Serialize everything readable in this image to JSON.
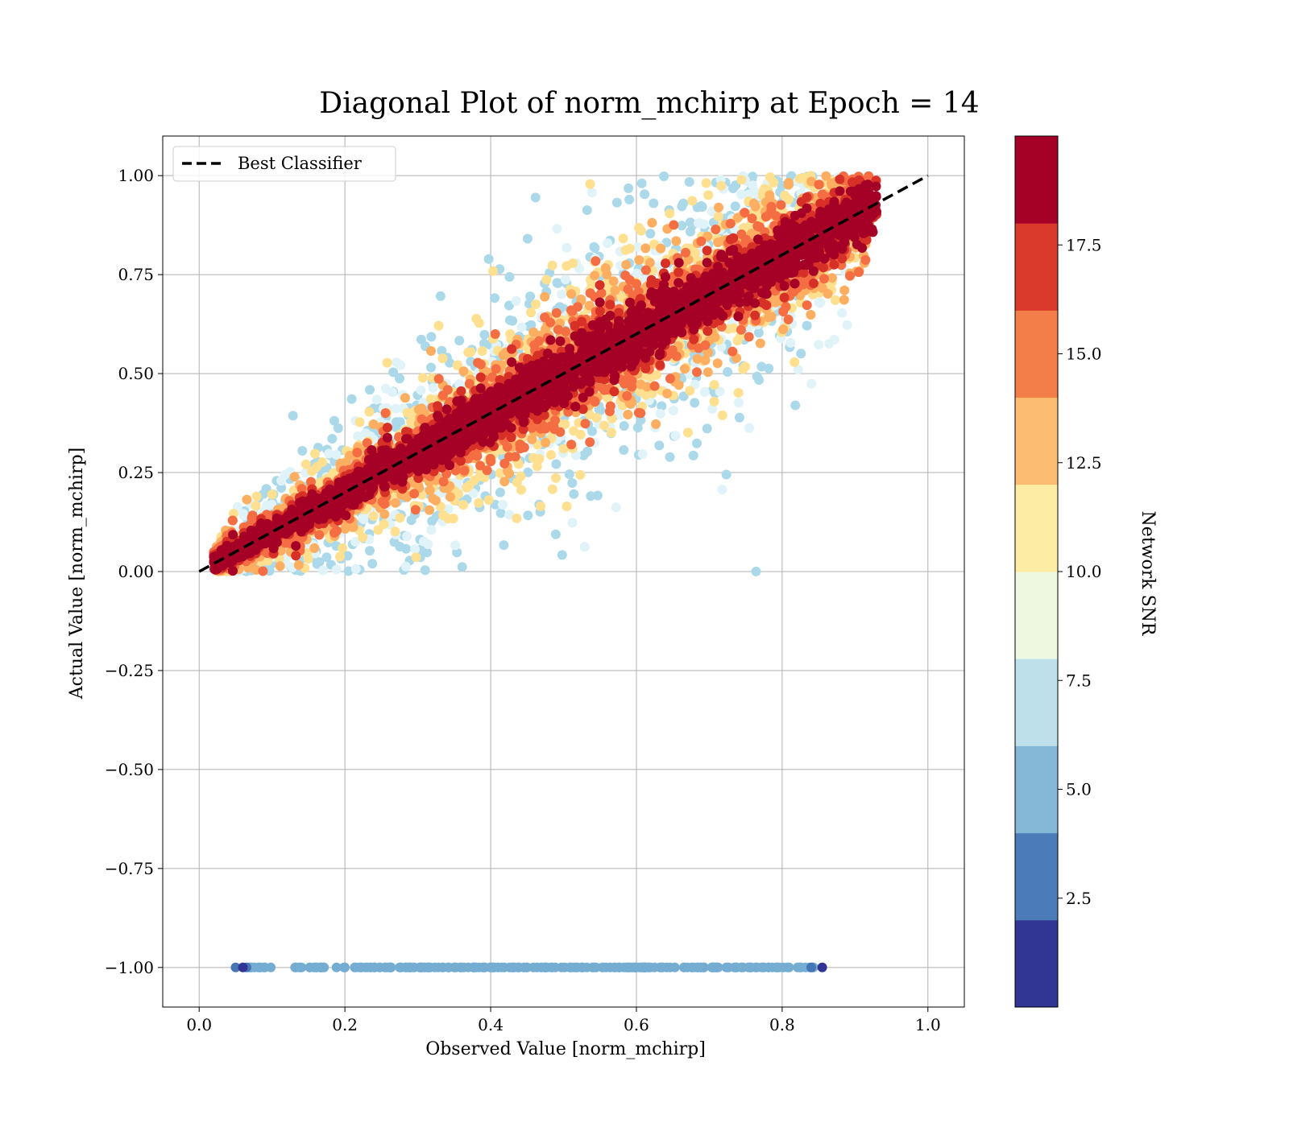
{
  "chart_data": {
    "type": "scatter",
    "title": "Diagonal Plot of norm_mchirp at Epoch = 14",
    "xlabel": "Observed Value [norm_mchirp]",
    "ylabel": "Actual Value [norm_mchirp]",
    "xlim": [
      -0.05,
      1.05
    ],
    "ylim": [
      -1.1,
      1.1
    ],
    "x_ticks": [
      0.0,
      0.2,
      0.4,
      0.6,
      0.8,
      1.0
    ],
    "x_tick_labels": [
      "0.0",
      "0.2",
      "0.4",
      "0.6",
      "0.8",
      "1.0"
    ],
    "y_ticks": [
      1.0,
      0.75,
      0.5,
      0.25,
      0.0,
      -0.25,
      -0.5,
      -0.75,
      -1.0
    ],
    "y_tick_labels": [
      "1.00",
      "0.75",
      "0.50",
      "0.25",
      "0.00",
      "−0.25",
      "−0.50",
      "−0.75",
      "−1.00"
    ],
    "grid": true,
    "legend": {
      "position": "top-left",
      "entries": [
        "Best Classifier"
      ]
    },
    "reference_line": {
      "label": "Best Classifier",
      "from": [
        0,
        0
      ],
      "to": [
        1,
        1
      ],
      "style": "dashed",
      "color": "#000000"
    },
    "point_groups": [
      {
        "description_snr_range": [
          17.5,
          20
        ],
        "x_range": [
          0.02,
          0.93
        ],
        "relation": "y≈x, tight spread",
        "color": "#a50026"
      },
      {
        "description_snr_range": [
          12.5,
          17.5
        ],
        "x_range": [
          0.02,
          0.92
        ],
        "relation": "y≈x, moderate spread",
        "color": "#f46d43"
      },
      {
        "description_snr_range": [
          7.5,
          12.5
        ],
        "x_range": [
          0.03,
          0.9
        ],
        "relation": "y≈x, wide spread",
        "color": "#fee090"
      },
      {
        "description_snr_range": [
          5,
          7.5
        ],
        "x_range": [
          0.06,
          0.85
        ],
        "relation": "y≈x, widest spread",
        "color": "#abd9e9"
      },
      {
        "description_snr_range": [
          0,
          5
        ],
        "x_range": [
          0.05,
          0.86
        ],
        "relation": "y = -1.00",
        "color": "#74add1"
      }
    ],
    "colorbar": {
      "label": "Network SNR",
      "range": [
        0,
        20
      ],
      "ticks": [
        2.5,
        5.0,
        7.5,
        10.0,
        12.5,
        15.0,
        17.5
      ],
      "tick_labels": [
        "2.5",
        "5.0",
        "7.5",
        "10.0",
        "12.5",
        "15.0",
        "17.5"
      ],
      "colors": [
        "#313695",
        "#4575b4",
        "#74add1",
        "#abd9e9",
        "#e0f3f8",
        "#ffffbf",
        "#fee090",
        "#fdae61",
        "#f46d43",
        "#d73027",
        "#a50026"
      ],
      "band_colors": [
        "#313695",
        "#4b7bb8",
        "#85b7d6",
        "#bde0ea",
        "#eef7e0",
        "#fdeca4",
        "#fcbd72",
        "#f47e4a",
        "#d93a2c",
        "#a50026"
      ]
    }
  }
}
